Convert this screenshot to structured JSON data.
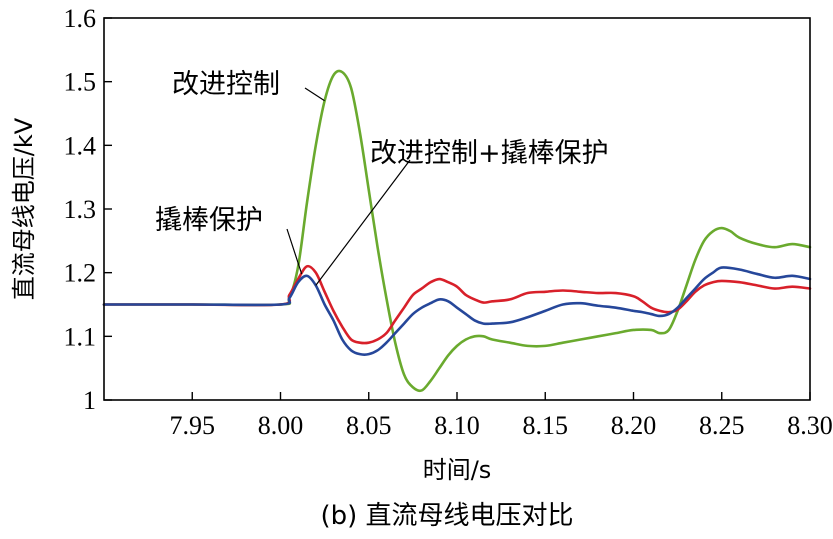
{
  "chart_data": {
    "type": "line",
    "xlabel": "时间/s",
    "ylabel": "直流母线电压/kV",
    "caption": "(b) 直流母线电压对比",
    "xlim": [
      7.9,
      8.3
    ],
    "ylim": [
      1.0,
      1.6
    ],
    "x_ticks": [
      "7.95",
      "8.00",
      "8.05",
      "8.10",
      "8.15",
      "8.20",
      "8.25",
      "8.30"
    ],
    "y_ticks": [
      "1",
      "1.1",
      "1.2",
      "1.3",
      "1.4",
      "1.5",
      "1.6"
    ],
    "grid": false,
    "annotations": [
      {
        "text": "改进控制",
        "series": "改进控制",
        "at_x": 8.025
      },
      {
        "text": "改进控制+撬棒保护",
        "series": "改进控制+撬棒保护",
        "at_x": 8.02
      },
      {
        "text": "撬棒保护",
        "series": "撬棒保护",
        "at_x": 8.012
      }
    ],
    "series": [
      {
        "name": "改进控制",
        "color": "#6aaa2e",
        "x": [
          7.9,
          7.95,
          8.0,
          8.005,
          8.01,
          8.015,
          8.02,
          8.025,
          8.03,
          8.035,
          8.04,
          8.045,
          8.05,
          8.055,
          8.06,
          8.065,
          8.07,
          8.075,
          8.08,
          8.085,
          8.09,
          8.095,
          8.1,
          8.105,
          8.11,
          8.115,
          8.12,
          8.13,
          8.14,
          8.15,
          8.16,
          8.17,
          8.18,
          8.19,
          8.2,
          8.21,
          8.215,
          8.22,
          8.225,
          8.23,
          8.235,
          8.24,
          8.245,
          8.25,
          8.255,
          8.26,
          8.27,
          8.28,
          8.29,
          8.3
        ],
        "y": [
          1.15,
          1.15,
          1.15,
          1.16,
          1.21,
          1.31,
          1.4,
          1.47,
          1.51,
          1.515,
          1.49,
          1.42,
          1.33,
          1.24,
          1.16,
          1.09,
          1.04,
          1.02,
          1.015,
          1.03,
          1.05,
          1.07,
          1.085,
          1.095,
          1.1,
          1.1,
          1.095,
          1.09,
          1.085,
          1.085,
          1.09,
          1.095,
          1.1,
          1.105,
          1.11,
          1.11,
          1.105,
          1.11,
          1.14,
          1.18,
          1.22,
          1.25,
          1.265,
          1.27,
          1.265,
          1.255,
          1.245,
          1.24,
          1.245,
          1.24
        ]
      },
      {
        "name": "撬棒保护",
        "color": "#d8202a",
        "x": [
          7.9,
          7.95,
          8.0,
          8.005,
          8.01,
          8.015,
          8.02,
          8.025,
          8.03,
          8.035,
          8.04,
          8.045,
          8.05,
          8.055,
          8.06,
          8.065,
          8.07,
          8.075,
          8.08,
          8.085,
          8.09,
          8.095,
          8.1,
          8.105,
          8.11,
          8.115,
          8.12,
          8.13,
          8.14,
          8.15,
          8.16,
          8.17,
          8.18,
          8.19,
          8.2,
          8.205,
          8.21,
          8.215,
          8.22,
          8.225,
          8.23,
          8.235,
          8.24,
          8.245,
          8.25,
          8.26,
          8.27,
          8.28,
          8.29,
          8.3
        ],
        "y": [
          1.15,
          1.15,
          1.15,
          1.165,
          1.19,
          1.21,
          1.2,
          1.17,
          1.14,
          1.115,
          1.095,
          1.09,
          1.09,
          1.095,
          1.105,
          1.125,
          1.145,
          1.165,
          1.175,
          1.185,
          1.19,
          1.185,
          1.178,
          1.165,
          1.158,
          1.153,
          1.155,
          1.158,
          1.168,
          1.17,
          1.172,
          1.17,
          1.168,
          1.168,
          1.163,
          1.155,
          1.145,
          1.14,
          1.138,
          1.142,
          1.155,
          1.17,
          1.18,
          1.185,
          1.187,
          1.185,
          1.18,
          1.175,
          1.178,
          1.175
        ]
      },
      {
        "name": "改进控制+撬棒保护",
        "color": "#26479a",
        "x": [
          7.9,
          7.95,
          8.0,
          8.005,
          8.01,
          8.015,
          8.02,
          8.025,
          8.03,
          8.035,
          8.04,
          8.045,
          8.05,
          8.055,
          8.06,
          8.065,
          8.07,
          8.075,
          8.08,
          8.085,
          8.09,
          8.095,
          8.1,
          8.105,
          8.11,
          8.115,
          8.12,
          8.13,
          8.14,
          8.15,
          8.16,
          8.17,
          8.18,
          8.19,
          8.2,
          8.205,
          8.21,
          8.215,
          8.22,
          8.225,
          8.23,
          8.235,
          8.24,
          8.245,
          8.25,
          8.26,
          8.27,
          8.28,
          8.29,
          8.3
        ],
        "y": [
          1.15,
          1.15,
          1.15,
          1.16,
          1.185,
          1.195,
          1.18,
          1.15,
          1.125,
          1.095,
          1.078,
          1.072,
          1.072,
          1.078,
          1.09,
          1.105,
          1.12,
          1.135,
          1.145,
          1.152,
          1.158,
          1.155,
          1.145,
          1.135,
          1.125,
          1.12,
          1.12,
          1.122,
          1.13,
          1.14,
          1.15,
          1.152,
          1.148,
          1.145,
          1.14,
          1.138,
          1.135,
          1.132,
          1.135,
          1.145,
          1.16,
          1.175,
          1.19,
          1.2,
          1.208,
          1.205,
          1.198,
          1.192,
          1.195,
          1.19
        ]
      }
    ]
  }
}
